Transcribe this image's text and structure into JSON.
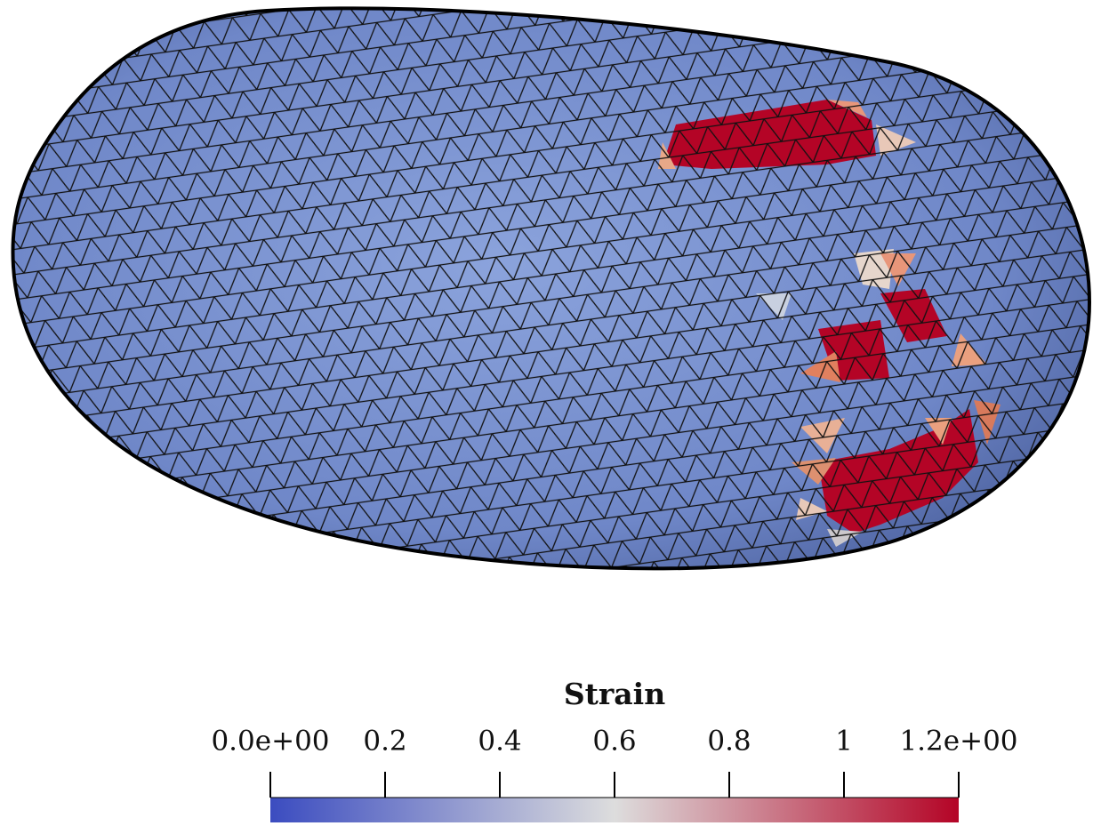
{
  "chart_data": {
    "type": "colorbar",
    "title": "Strain",
    "xlim": [
      0,
      1.2
    ],
    "xticks": [
      {
        "value": 0,
        "label": "0.0e+00"
      },
      0.2,
      0.4,
      0.6,
      0.8,
      1,
      {
        "value": 1.2,
        "label": "1.2e+00"
      }
    ],
    "colormap": [
      "#3b4cc0",
      "#dddddd",
      "#b40426"
    ]
  }
}
